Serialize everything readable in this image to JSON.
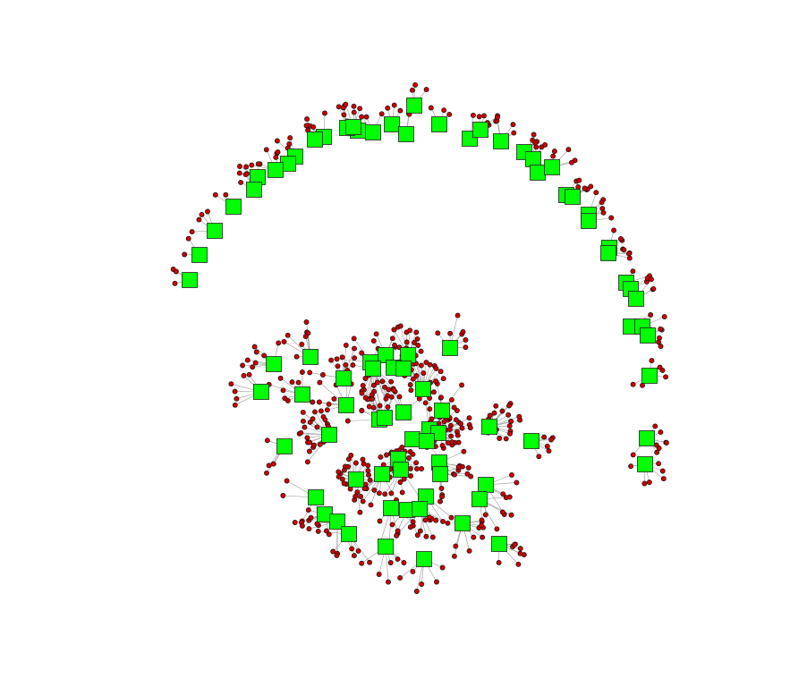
{
  "figure": {
    "type": "network-graph",
    "background": "#ffffff",
    "legend": "none",
    "components": [
      {
        "name": "outer-arc",
        "hub_count": 48,
        "leaves_per_hub": 3
      },
      {
        "name": "central-cluster",
        "hub_count": 52,
        "leaves_per_hub": 6
      }
    ]
  },
  "style": {
    "hub_shape": "square",
    "hub_color": "#00ff00",
    "hub_border": "#222222",
    "leaf_shape": "circle",
    "leaf_color": "#cc0000",
    "leaf_border": "#111111",
    "edge_color": "#9a9a9a"
  }
}
